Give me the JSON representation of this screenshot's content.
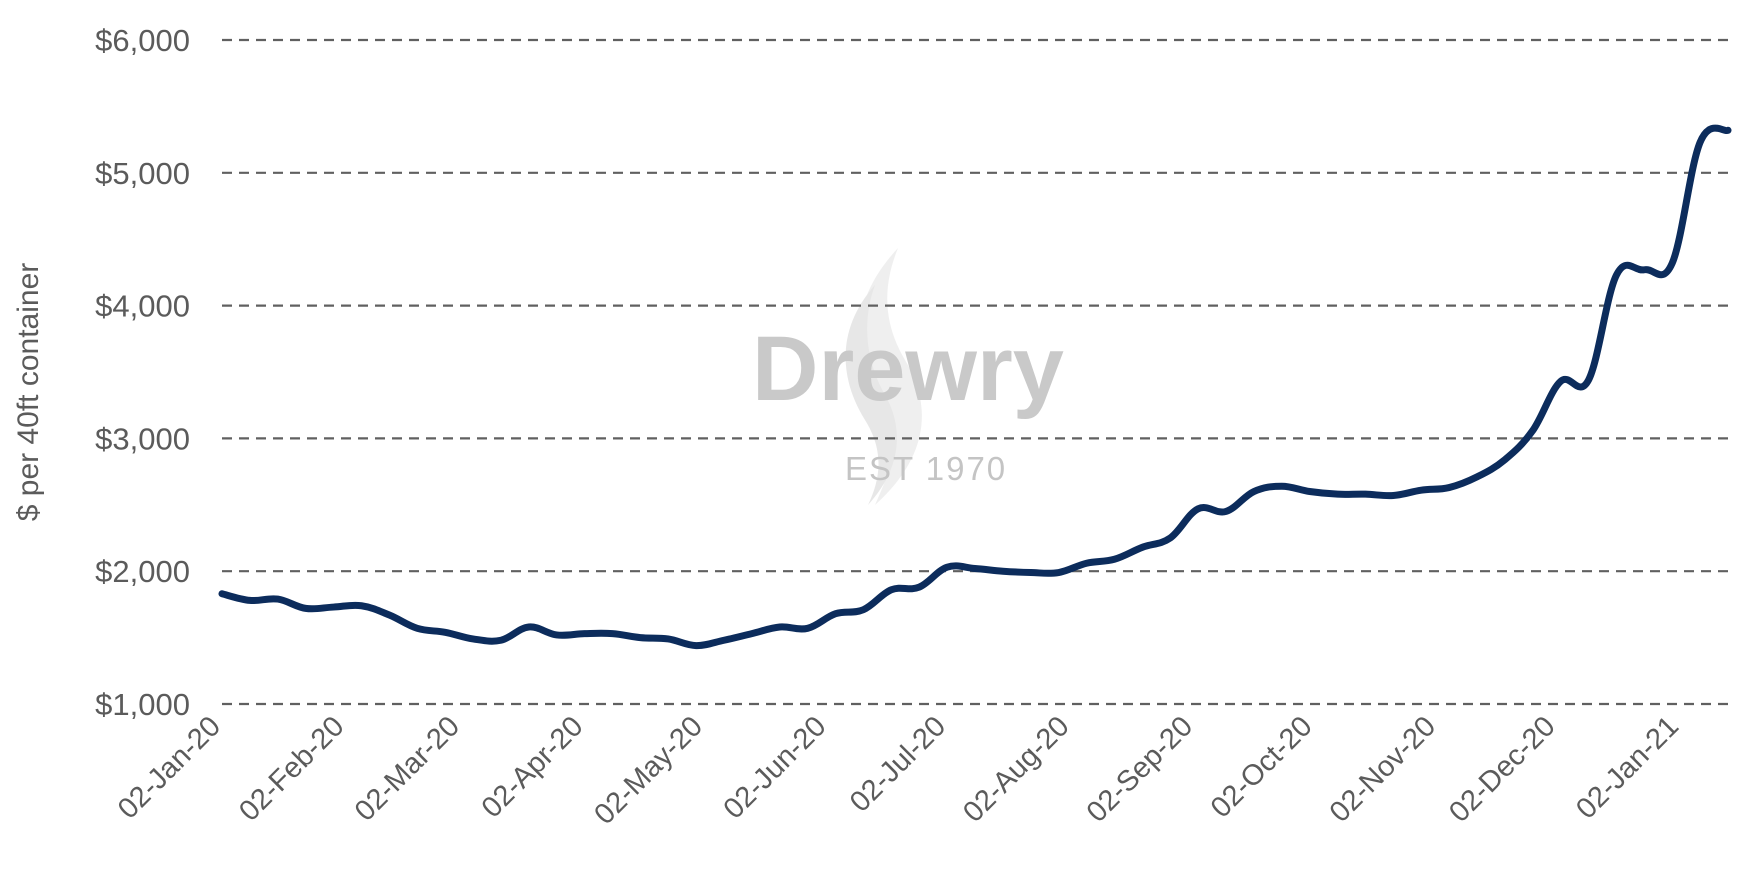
{
  "chart_data": {
    "type": "line",
    "title": "",
    "xlabel": "",
    "ylabel": "$ per 40ft container",
    "ylim": [
      1000,
      6000
    ],
    "y_ticks": [
      1000,
      2000,
      3000,
      4000,
      5000,
      6000
    ],
    "y_tick_labels": [
      "$1,000",
      "$2,000",
      "$3,000",
      "$4,000",
      "$5,000",
      "$6,000"
    ],
    "x_range": [
      "2020-01-02",
      "2021-01-14"
    ],
    "x_ticks": [
      {
        "date": "2020-01-02",
        "label": "02-Jan-20"
      },
      {
        "date": "2020-02-02",
        "label": "02-Feb-20"
      },
      {
        "date": "2020-03-02",
        "label": "02-Mar-20"
      },
      {
        "date": "2020-04-02",
        "label": "02-Apr-20"
      },
      {
        "date": "2020-05-02",
        "label": "02-May-20"
      },
      {
        "date": "2020-06-02",
        "label": "02-Jun-20"
      },
      {
        "date": "2020-07-02",
        "label": "02-Jul-20"
      },
      {
        "date": "2020-08-02",
        "label": "02-Aug-20"
      },
      {
        "date": "2020-09-02",
        "label": "02-Sep-20"
      },
      {
        "date": "2020-10-02",
        "label": "02-Oct-20"
      },
      {
        "date": "2020-11-02",
        "label": "02-Nov-20"
      },
      {
        "date": "2020-12-02",
        "label": "02-Dec-20"
      },
      {
        "date": "2021-01-02",
        "label": "02-Jan-21"
      }
    ],
    "grid": true,
    "legend": "none",
    "series": [
      {
        "color": "#0c2c5c",
        "points": [
          [
            "2020-01-02",
            1830
          ],
          [
            "2020-01-09",
            1780
          ],
          [
            "2020-01-16",
            1790
          ],
          [
            "2020-01-23",
            1720
          ],
          [
            "2020-01-30",
            1730
          ],
          [
            "2020-02-06",
            1740
          ],
          [
            "2020-02-13",
            1670
          ],
          [
            "2020-02-20",
            1570
          ],
          [
            "2020-02-27",
            1540
          ],
          [
            "2020-03-05",
            1490
          ],
          [
            "2020-03-12",
            1480
          ],
          [
            "2020-03-19",
            1580
          ],
          [
            "2020-03-26",
            1520
          ],
          [
            "2020-04-02",
            1530
          ],
          [
            "2020-04-09",
            1530
          ],
          [
            "2020-04-16",
            1500
          ],
          [
            "2020-04-23",
            1490
          ],
          [
            "2020-04-30",
            1440
          ],
          [
            "2020-05-07",
            1480
          ],
          [
            "2020-05-14",
            1530
          ],
          [
            "2020-05-21",
            1580
          ],
          [
            "2020-05-28",
            1570
          ],
          [
            "2020-06-04",
            1680
          ],
          [
            "2020-06-11",
            1710
          ],
          [
            "2020-06-18",
            1860
          ],
          [
            "2020-06-25",
            1880
          ],
          [
            "2020-07-02",
            2030
          ],
          [
            "2020-07-09",
            2020
          ],
          [
            "2020-07-16",
            2000
          ],
          [
            "2020-07-23",
            1990
          ],
          [
            "2020-07-30",
            1990
          ],
          [
            "2020-08-06",
            2060
          ],
          [
            "2020-08-13",
            2090
          ],
          [
            "2020-08-20",
            2180
          ],
          [
            "2020-08-27",
            2250
          ],
          [
            "2020-09-03",
            2470
          ],
          [
            "2020-09-10",
            2450
          ],
          [
            "2020-09-17",
            2600
          ],
          [
            "2020-09-24",
            2640
          ],
          [
            "2020-10-01",
            2600
          ],
          [
            "2020-10-08",
            2580
          ],
          [
            "2020-10-15",
            2580
          ],
          [
            "2020-10-22",
            2570
          ],
          [
            "2020-10-29",
            2610
          ],
          [
            "2020-11-05",
            2630
          ],
          [
            "2020-11-12",
            2710
          ],
          [
            "2020-11-19",
            2840
          ],
          [
            "2020-11-26",
            3060
          ],
          [
            "2020-12-03",
            3430
          ],
          [
            "2020-12-10",
            3440
          ],
          [
            "2020-12-17",
            4230
          ],
          [
            "2020-12-24",
            4270
          ],
          [
            "2020-12-31",
            4320
          ],
          [
            "2021-01-07",
            5230
          ],
          [
            "2021-01-14",
            5320
          ]
        ]
      }
    ]
  },
  "watermark": {
    "brand": "Drewry",
    "subtitle": "EST 1970",
    "flame_icon": "flame-logo-icon"
  }
}
